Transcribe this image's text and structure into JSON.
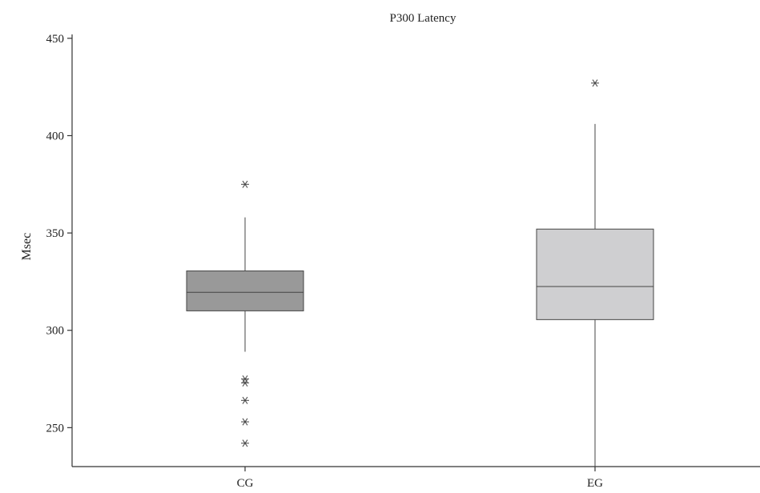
{
  "chart_data": {
    "type": "boxplot",
    "title": "P300 Latency",
    "xlabel": "",
    "ylabel": "Msec",
    "ylim": [
      230,
      452
    ],
    "yticks": [
      250,
      300,
      350,
      400,
      450
    ],
    "categories": [
      "CG",
      "EG"
    ],
    "boxes": [
      {
        "category": "CG",
        "whisker_low": 289,
        "q1": 310,
        "median": 319.5,
        "q3": 330.5,
        "whisker_high": 358,
        "outliers": [
          375,
          275,
          273,
          264,
          253,
          242
        ],
        "color": "#999999"
      },
      {
        "category": "EG",
        "whisker_low": 230,
        "q1": 305.5,
        "median": 322.5,
        "q3": 352,
        "whisker_high": 406,
        "outliers": [
          427
        ],
        "color": "#cfcfd1"
      }
    ],
    "grid": false,
    "legend": "none"
  }
}
